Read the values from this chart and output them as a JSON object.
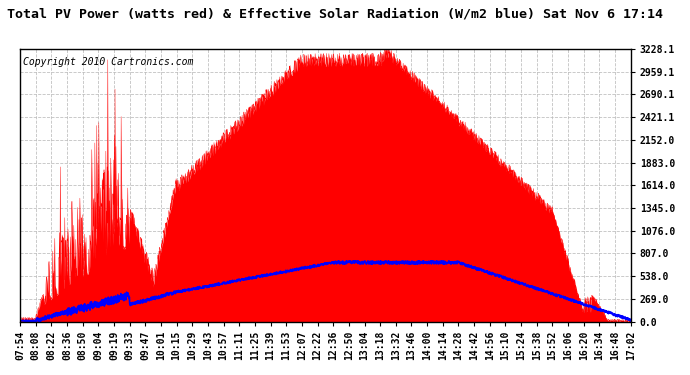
{
  "title": "Total PV Power (watts red) & Effective Solar Radiation (W/m2 blue) Sat Nov 6 17:14",
  "copyright": "Copyright 2010 Cartronics.com",
  "y_max": 3228.1,
  "y_ticks": [
    0.0,
    269.0,
    538.0,
    807.0,
    1076.0,
    1345.0,
    1614.0,
    1883.0,
    2152.0,
    2421.1,
    2690.1,
    2959.1,
    3228.1
  ],
  "x_labels": [
    "07:54",
    "08:08",
    "08:22",
    "08:36",
    "08:50",
    "09:04",
    "09:19",
    "09:33",
    "09:47",
    "10:01",
    "10:15",
    "10:29",
    "10:43",
    "10:57",
    "11:11",
    "11:25",
    "11:39",
    "11:53",
    "12:07",
    "12:22",
    "12:36",
    "12:50",
    "13:04",
    "13:18",
    "13:32",
    "13:46",
    "14:00",
    "14:14",
    "14:28",
    "14:42",
    "14:56",
    "15:10",
    "15:24",
    "15:38",
    "15:52",
    "16:06",
    "16:20",
    "16:34",
    "16:48",
    "17:02"
  ],
  "fill_color": "#FF0000",
  "line_color": "#0000FF",
  "bg_color": "#FFFFFF",
  "plot_bg_color": "#FFFFFF",
  "grid_color": "#BBBBBB",
  "title_fontsize": 9.5,
  "copyright_fontsize": 7,
  "tick_fontsize": 7
}
